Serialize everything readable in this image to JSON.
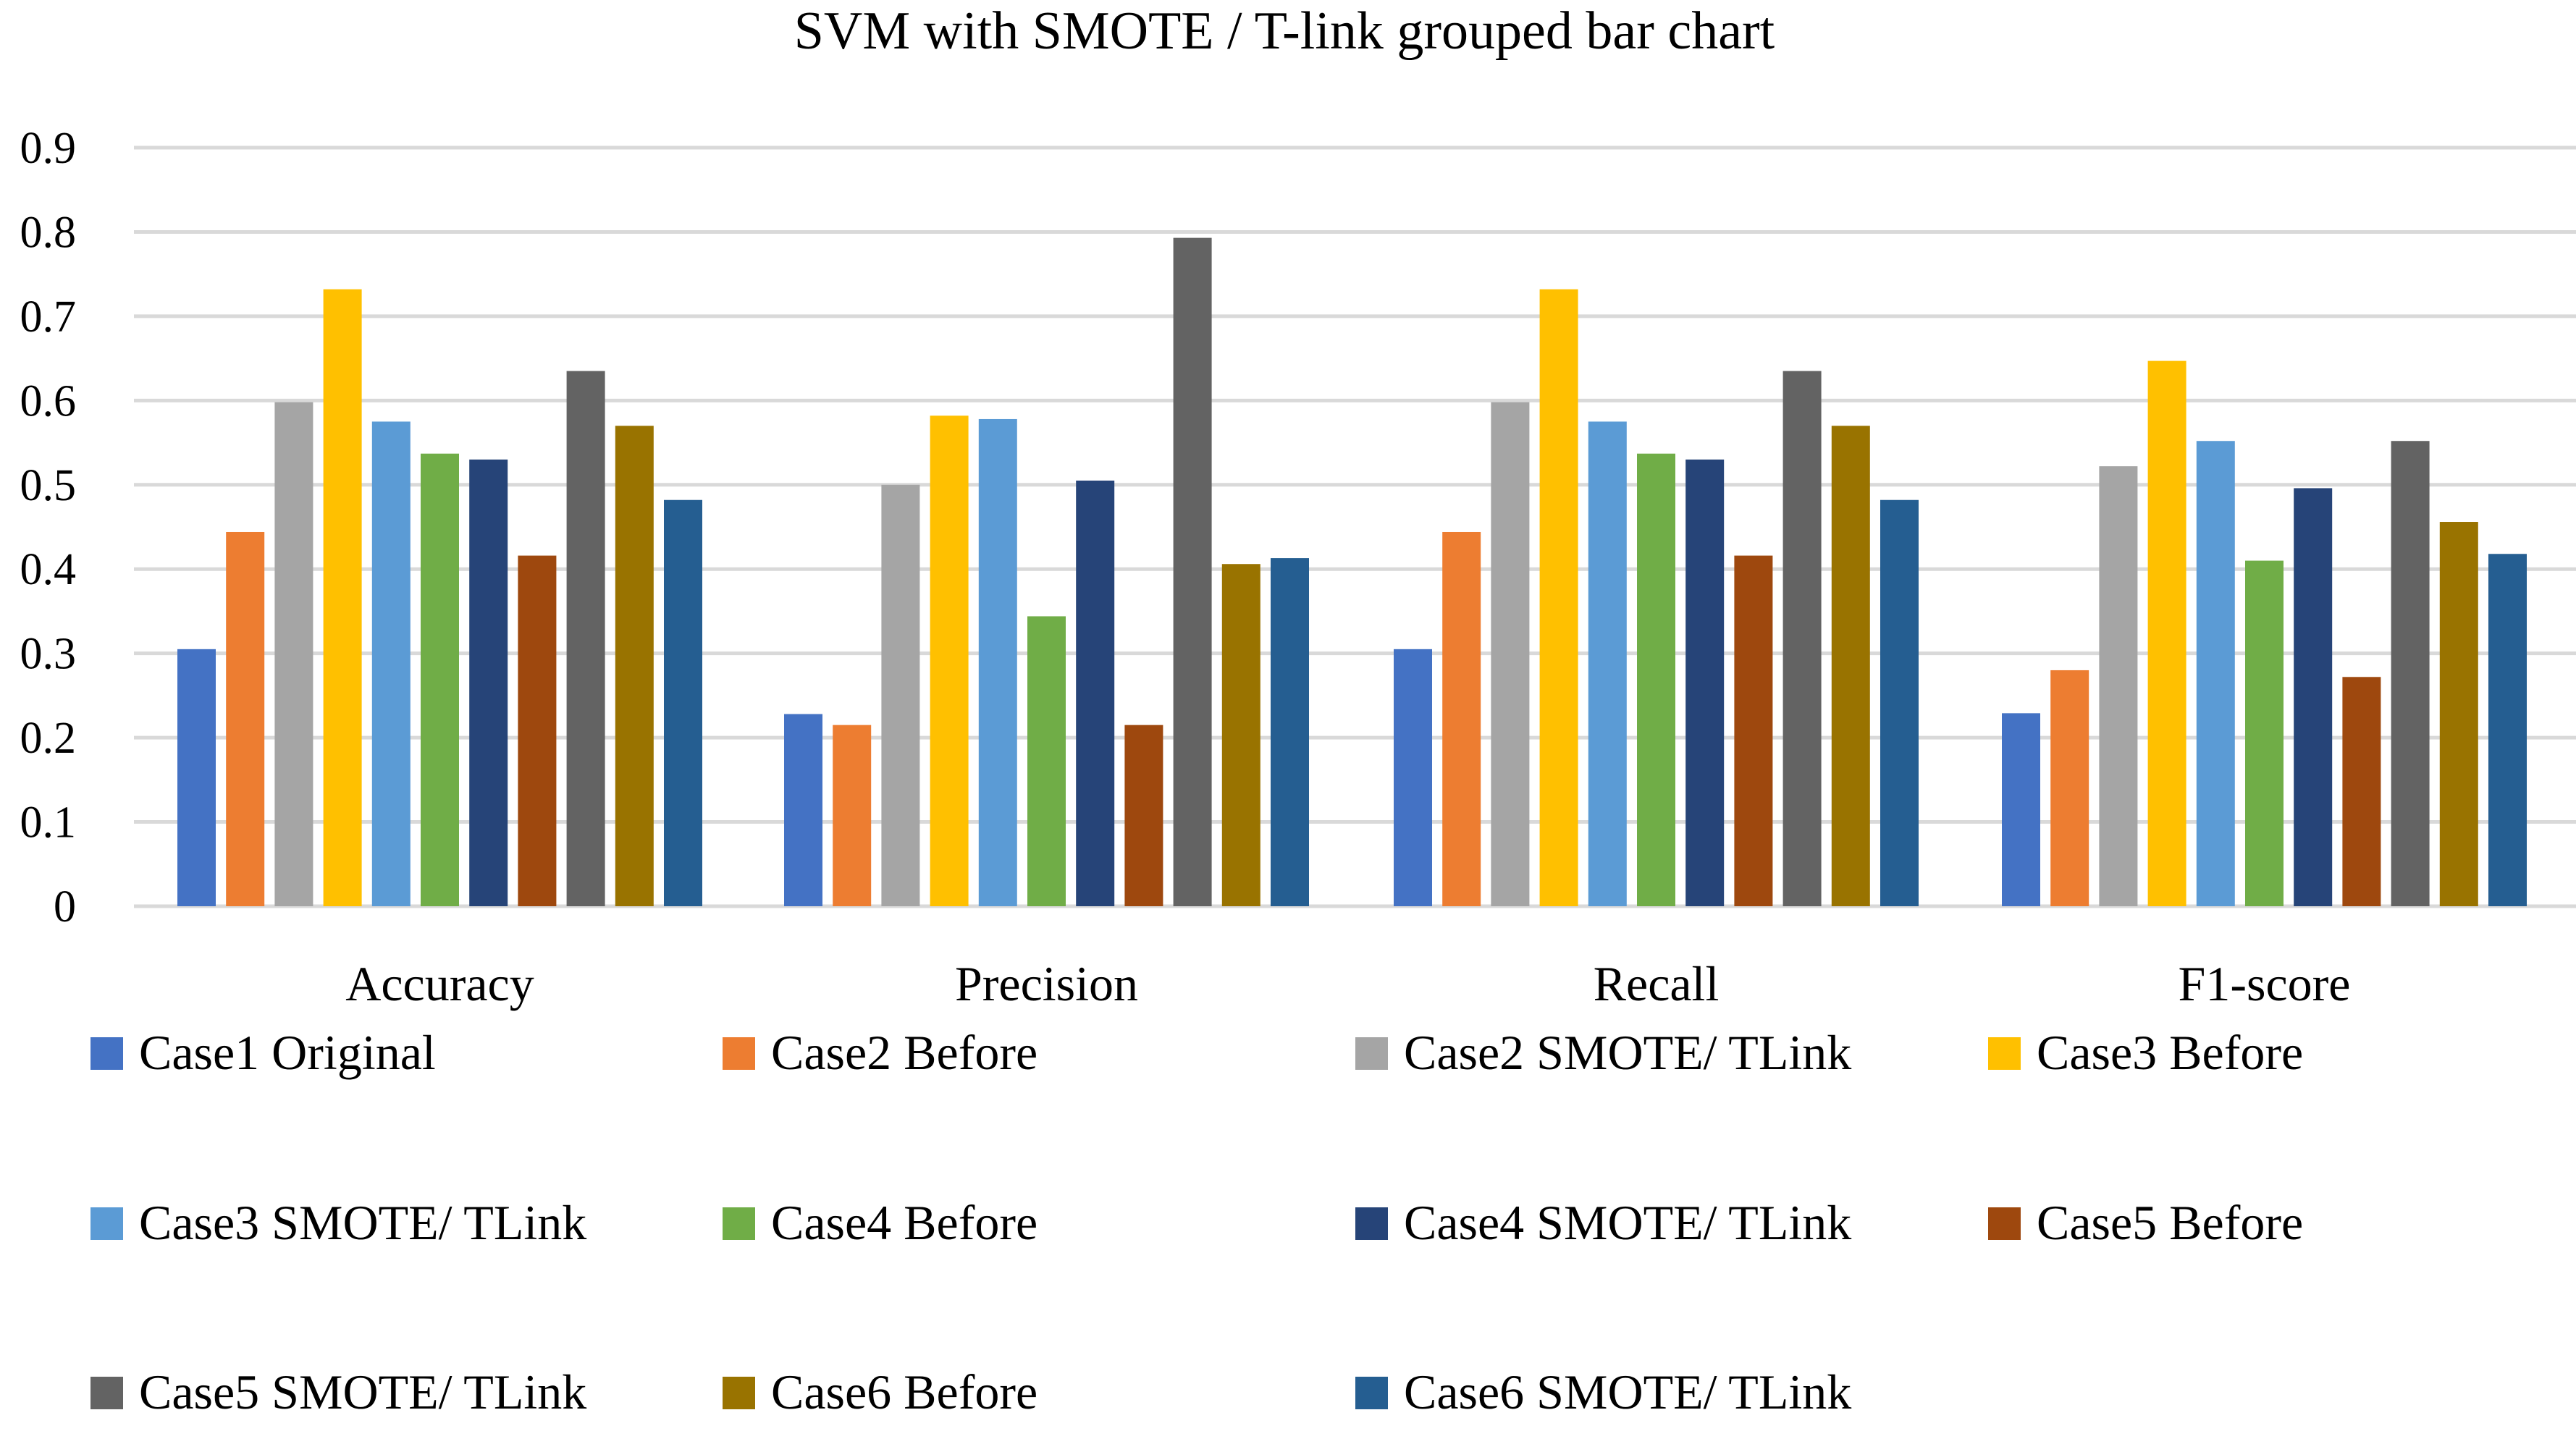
{
  "chart_data": {
    "type": "bar",
    "title": "SVM with SMOTE / T-link grouped bar chart",
    "xlabel": "",
    "ylabel": "",
    "ylim": [
      0,
      0.9
    ],
    "yticks": [
      "0",
      "0.1",
      "0.2",
      "0.3",
      "0.4",
      "0.5",
      "0.6",
      "0.7",
      "0.8",
      "0.9"
    ],
    "grid": true,
    "legend_position": "bottom",
    "categories": [
      "Accuracy",
      "Precision",
      "Recall",
      "F1-score"
    ],
    "series": [
      {
        "name": "Case1  Original",
        "color": "#4472C4",
        "values": [
          0.305,
          0.228,
          0.305,
          0.229
        ]
      },
      {
        "name": "Case2  Before",
        "color": "#ED7D31",
        "values": [
          0.444,
          0.215,
          0.444,
          0.28
        ]
      },
      {
        "name": "Case2  SMOTE/ TLink",
        "color": "#A5A5A5",
        "values": [
          0.598,
          0.5,
          0.598,
          0.522
        ]
      },
      {
        "name": "Case3 Before",
        "color": "#FFC000",
        "values": [
          0.732,
          0.582,
          0.732,
          0.647
        ]
      },
      {
        "name": "Case3 SMOTE/ TLink",
        "color": "#5B9BD5",
        "values": [
          0.575,
          0.578,
          0.575,
          0.552
        ]
      },
      {
        "name": "Case4 Before",
        "color": "#70AD47",
        "values": [
          0.537,
          0.344,
          0.537,
          0.41
        ]
      },
      {
        "name": "Case4 SMOTE/ TLink",
        "color": "#264478",
        "values": [
          0.53,
          0.505,
          0.53,
          0.496
        ]
      },
      {
        "name": "Case5 Before",
        "color": "#9E480E",
        "values": [
          0.416,
          0.215,
          0.416,
          0.272
        ]
      },
      {
        "name": "Case5 SMOTE/ TLink",
        "color": "#636363",
        "values": [
          0.635,
          0.793,
          0.635,
          0.552
        ]
      },
      {
        "name": "Case6 Before",
        "color": "#997300",
        "values": [
          0.57,
          0.406,
          0.57,
          0.456
        ]
      },
      {
        "name": "Case6 SMOTE/ TLink",
        "color": "#255E91",
        "values": [
          0.482,
          0.413,
          0.482,
          0.418
        ]
      }
    ],
    "gridline_color": "#D9D9D9"
  }
}
